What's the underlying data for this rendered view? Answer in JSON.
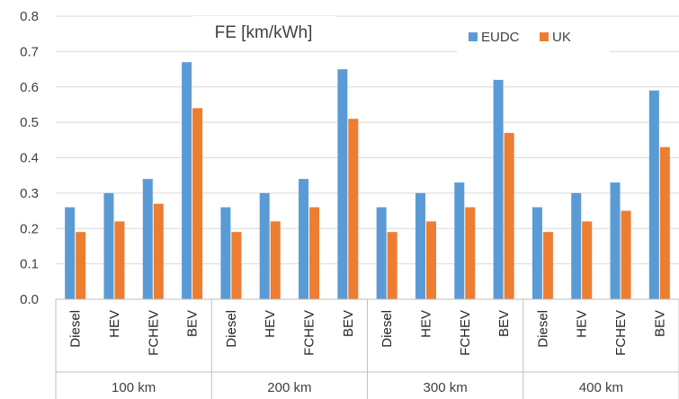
{
  "chart_data": {
    "type": "bar",
    "title": "FE [km/kWh]",
    "xlabel": "",
    "ylabel": "",
    "ylim": [
      0,
      0.8
    ],
    "yticks": [
      "0.0",
      "0.1",
      "0.2",
      "0.3",
      "0.4",
      "0.5",
      "0.6",
      "0.7",
      "0.8"
    ],
    "grid": true,
    "legend_position": "top-right",
    "groups": [
      "100 km",
      "200 km",
      "300 km",
      "400 km"
    ],
    "categories": [
      "Diesel",
      "HEV",
      "FCHEV",
      "BEV"
    ],
    "series": [
      {
        "name": "EUDC",
        "color": "#5b9bd5",
        "values": [
          [
            0.26,
            0.3,
            0.34,
            0.67
          ],
          [
            0.26,
            0.3,
            0.34,
            0.65
          ],
          [
            0.26,
            0.3,
            0.33,
            0.62
          ],
          [
            0.26,
            0.3,
            0.33,
            0.59
          ]
        ]
      },
      {
        "name": "UK",
        "color": "#ed7d31",
        "values": [
          [
            0.19,
            0.22,
            0.27,
            0.54
          ],
          [
            0.19,
            0.22,
            0.26,
            0.51
          ],
          [
            0.19,
            0.22,
            0.26,
            0.47
          ],
          [
            0.19,
            0.22,
            0.25,
            0.43
          ]
        ]
      }
    ]
  }
}
